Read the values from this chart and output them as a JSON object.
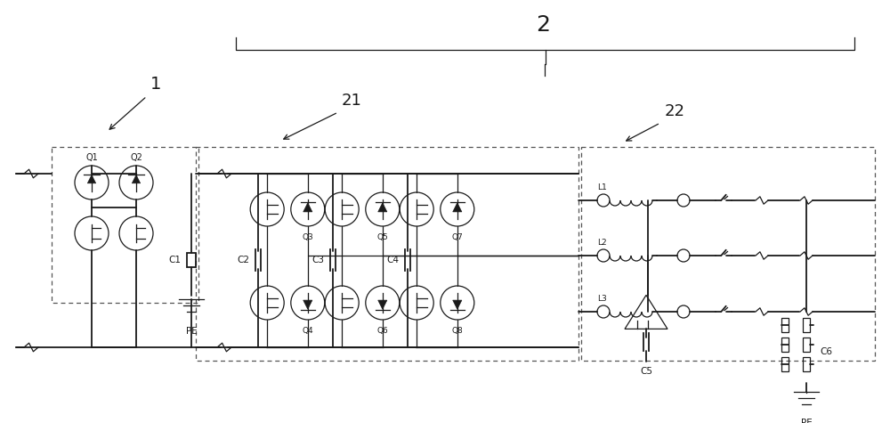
{
  "bg_color": "#ffffff",
  "lc": "#1a1a1a",
  "dc": "#555555",
  "label_1": "1",
  "label_2": "2",
  "label_21": "21",
  "label_22": "22",
  "labels_Q_top": [
    "Q1",
    "Q2"
  ],
  "labels_Q_upper": [
    "Q3",
    "Q5",
    "Q7"
  ],
  "labels_Q_lower": [
    "Q4",
    "Q6",
    "Q8"
  ],
  "labels_C": [
    "C1",
    "C2",
    "C3",
    "C4",
    "C5",
    "C6"
  ],
  "labels_L": [
    "L1",
    "L2",
    "L3"
  ],
  "label_PE": "PE",
  "figw": 10.0,
  "figh": 4.75,
  "dpi": 100
}
